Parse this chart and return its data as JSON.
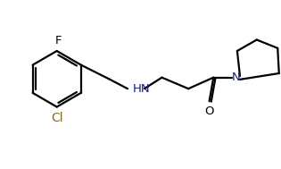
{
  "bg_color": "#ffffff",
  "line_color": "#000000",
  "label_color_N": "#1a1a8c",
  "label_color_O": "#000000",
  "label_color_F": "#000000",
  "label_color_Cl": "#8b6914",
  "lw": 1.6,
  "fs": 9.5,
  "figsize": [
    3.15,
    1.89
  ],
  "dpi": 100,
  "xlim": [
    0,
    10
  ],
  "ylim": [
    0,
    6
  ]
}
